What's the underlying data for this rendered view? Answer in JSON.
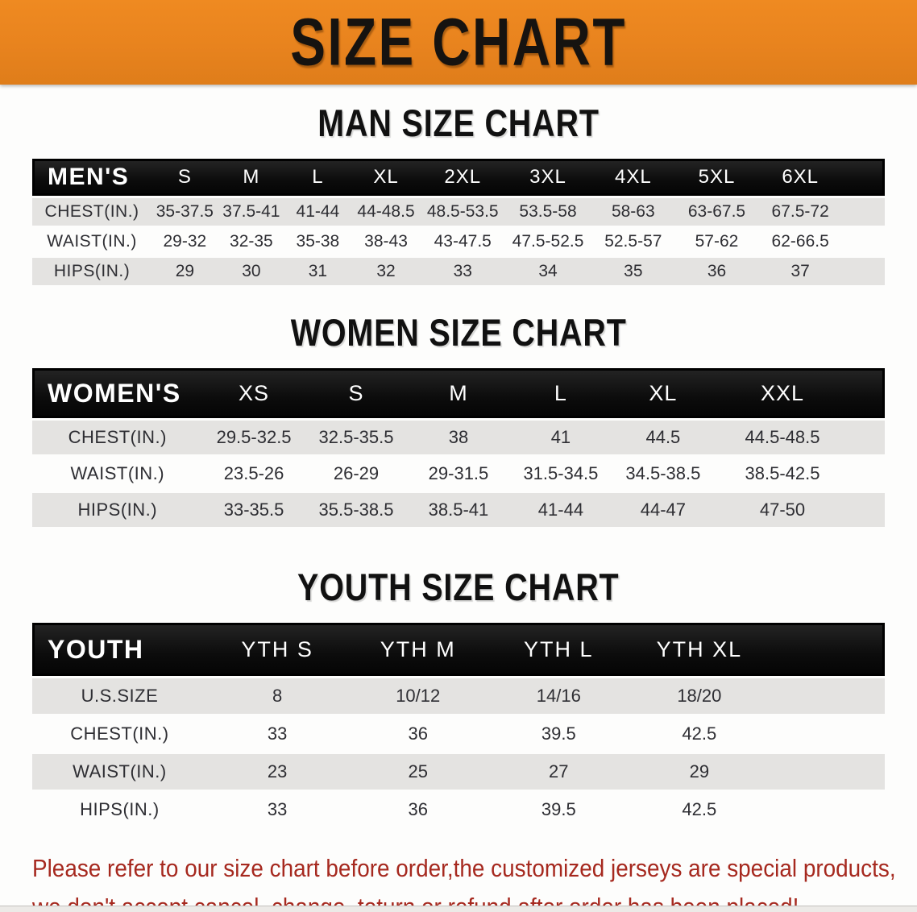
{
  "banner": {
    "title": "SIZE CHART",
    "bg_color": "#E8831E",
    "text_color": "#161310"
  },
  "sections": [
    {
      "title": "MAN SIZE CHART",
      "table": {
        "label": "MEN'S",
        "columns": [
          "S",
          "M",
          "L",
          "XL",
          "2XL",
          "3XL",
          "4XL",
          "5XL",
          "6XL"
        ],
        "rows": [
          {
            "label": "CHEST(IN.)",
            "values": [
              "35-37.5",
              "37.5-41",
              "41-44",
              "44-48.5",
              "48.5-53.5",
              "53.5-58",
              "58-63",
              "63-67.5",
              "67.5-72"
            ]
          },
          {
            "label": "WAIST(IN.)",
            "values": [
              "29-32",
              "32-35",
              "35-38",
              "38-43",
              "43-47.5",
              "47.5-52.5",
              "52.5-57",
              "57-62",
              "62-66.5"
            ]
          },
          {
            "label": "HIPS(IN.)",
            "values": [
              "29",
              "30",
              "31",
              "32",
              "33",
              "34",
              "35",
              "36",
              "37"
            ]
          }
        ]
      }
    },
    {
      "title": "WOMEN SIZE CHART",
      "table": {
        "label": "WOMEN'S",
        "columns": [
          "XS",
          "S",
          "M",
          "L",
          "XL",
          "XXL"
        ],
        "rows": [
          {
            "label": "CHEST(IN.)",
            "values": [
              "29.5-32.5",
              "32.5-35.5",
              "38",
              "41",
              "44.5",
              "44.5-48.5"
            ]
          },
          {
            "label": "WAIST(IN.)",
            "values": [
              "23.5-26",
              "26-29",
              "29-31.5",
              "31.5-34.5",
              "34.5-38.5",
              "38.5-42.5"
            ]
          },
          {
            "label": "HIPS(IN.)",
            "values": [
              "33-35.5",
              "35.5-38.5",
              "38.5-41",
              "41-44",
              "44-47",
              "47-50"
            ]
          }
        ]
      }
    },
    {
      "title": "YOUTH SIZE CHART",
      "table": {
        "label": "YOUTH",
        "columns": [
          "YTH S",
          "YTH M",
          "YTH L",
          "YTH XL"
        ],
        "rows": [
          {
            "label": "U.S.SIZE",
            "values": [
              "8",
              "10/12",
              "14/16",
              "18/20"
            ]
          },
          {
            "label": "CHEST(IN.)",
            "values": [
              "33",
              "36",
              "39.5",
              "42.5"
            ]
          },
          {
            "label": "WAIST(IN.)",
            "values": [
              "23",
              "25",
              "27",
              "29"
            ]
          },
          {
            "label": "HIPS(IN.)",
            "values": [
              "33",
              "36",
              "39.5",
              "42.5"
            ]
          }
        ]
      }
    }
  ],
  "disclaimer": {
    "line1": "Please refer to our size chart before order,the customized jerseys are special products,",
    "line2": "we don't accept cancel, change, teturn or refund after order has been placed!",
    "color": "#A6291F"
  },
  "colors": {
    "banner_orange": "#E8831E",
    "table_header_black": "#0C0C0C",
    "row_gray": "#E4E3E1",
    "row_white": "#FDFDFC",
    "data_text": "#2E2E33"
  }
}
